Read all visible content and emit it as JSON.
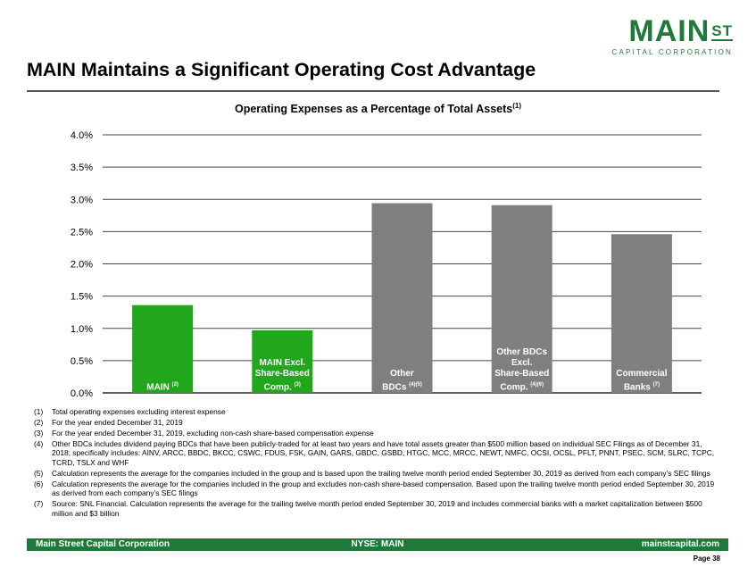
{
  "logo": {
    "main": "MAIN",
    "st": "ST",
    "sub": "CAPITAL CORPORATION"
  },
  "title": "MAIN Maintains a Significant Operating Cost Advantage",
  "chart_data": {
    "type": "bar",
    "title": "Operating Expenses as a Percentage of Total Assets",
    "title_note": "(1)",
    "categories": [
      "MAIN",
      "MAIN Excl. Share-Based Comp.",
      "Other BDCs",
      "Other BDCs Excl. Share-Based Comp.",
      "Commercial Banks"
    ],
    "category_lines": [
      [
        "MAIN"
      ],
      [
        "MAIN Excl.",
        "Share-Based",
        "Comp."
      ],
      [
        "Other",
        "BDCs"
      ],
      [
        "Other BDCs",
        "Excl.",
        "Share-Based",
        "Comp."
      ],
      [
        "Commercial",
        "Banks"
      ]
    ],
    "category_notes": [
      "(2)",
      "(3)",
      "(4)(5)",
      "(4)(6)",
      "(7)"
    ],
    "values": [
      1.36,
      0.97,
      2.94,
      2.91,
      2.46
    ],
    "colors": [
      "#22a61c",
      "#22a61c",
      "#7f7f7f",
      "#7f7f7f",
      "#7f7f7f"
    ],
    "ylim": [
      0,
      4.0
    ],
    "yticks": [
      "0.0%",
      "0.5%",
      "1.0%",
      "1.5%",
      "2.0%",
      "2.5%",
      "3.0%",
      "3.5%",
      "4.0%"
    ],
    "grid": true,
    "xlabel": "",
    "ylabel": ""
  },
  "footnotes": [
    {
      "num": "(1)",
      "text": "Total operating expenses excluding interest expense"
    },
    {
      "num": "(2)",
      "text": "For the year ended December 31, 2019"
    },
    {
      "num": "(3)",
      "text": "For the year ended December 31, 2019, excluding non-cash share-based compensation expense"
    },
    {
      "num": "(4)",
      "text": "Other BDCs includes dividend paying BDCs that have been publicly-traded for at least two years and have total assets greater than $500 million based on individual SEC Filings as of December 31, 2018; specifically includes: AINV, ARCC, BBDC, BKCC, CSWC, FDUS, FSK, GAIN, GARS, GBDC, GSBD, HTGC, MCC, MRCC, NEWT, NMFC, OCSI, OCSL, PFLT, PNNT, PSEC, SCM, SLRC, TCPC, TCRD, TSLX and WHF"
    },
    {
      "num": "(5)",
      "text": "Calculation represents the average for the companies included in the group and is based upon the trailing twelve month period ended September 30, 2019 as derived from each company’s SEC filings"
    },
    {
      "num": "(6)",
      "text": "Calculation represents the average for the companies included in the group and excludes non-cash share-based compensation. Based upon the trailing twelve month period ended September 30, 2019 as derived from each company’s SEC filings"
    },
    {
      "num": "(7)",
      "text": "Source: SNL Financial.  Calculation represents the average for the trailing twelve month period ended September 30, 2019 and includes commercial banks with a market capitalization between $500 million and $3 billion"
    }
  ],
  "footer": {
    "left": "Main Street Capital Corporation",
    "center": "NYSE: MAIN",
    "right": "mainstcapital.com"
  },
  "page": "Page  38"
}
